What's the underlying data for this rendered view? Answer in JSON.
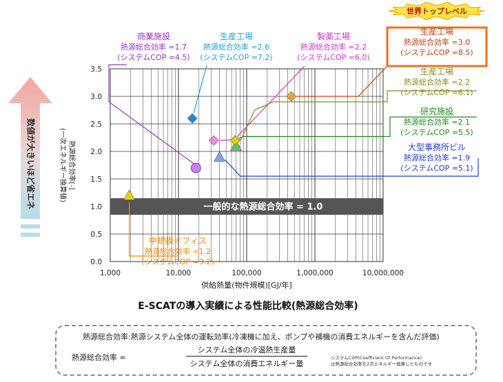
{
  "chart_data": {
    "type": "scatter",
    "title": "E-SCATの導入実績による性能比較(熱源総合効率)",
    "xlabel": "供給熱量(物件規模)[GJ/年]",
    "ylabel": "熱源総合効率[-]",
    "ylabel2": "(一次エネルギー換算値)",
    "xscale": "log",
    "xlim": [
      1000,
      10000000
    ],
    "ylim": [
      0,
      3.5
    ],
    "x_ticks": [
      "1,000",
      "10,000",
      "100,000",
      "1,000,000",
      "10,000,000"
    ],
    "y_ticks": [
      "0.0",
      "0.5",
      "1.0",
      "1.5",
      "2.0",
      "2.5",
      "3.0",
      "3.5"
    ],
    "grid": true,
    "reference_band": {
      "value": 1.0,
      "label": "一般的な熱源総合効率 = 1.0"
    },
    "points": [
      {
        "name": "中規模オフィス",
        "x": 1900,
        "y": 1.2,
        "marker": "triangle",
        "color": "#f2cc00",
        "label_color": "#f08a00",
        "value_text": "熱源総合効率 =1.2",
        "cop_text": "(システムCOP =3.2)"
      },
      {
        "name": "商業施設",
        "x": 18000,
        "y": 1.7,
        "marker": "circle",
        "color": "#c77ef0",
        "label_color": "#9b30c7",
        "value_text": "熱源総合効率 =1.7",
        "cop_text": "(システムCOP =4.5)"
      },
      {
        "name": "生産工場",
        "x": 16000,
        "y": 2.6,
        "marker": "diamond",
        "color": "#1e88e5",
        "label_color": "#1ea0d8",
        "value_text": "熱源総合効率 =2.6",
        "cop_text": "(システムCOP =7.2)"
      },
      {
        "name": "製薬工場",
        "x": 33000,
        "y": 2.2,
        "marker": "diamond",
        "color": "#f28de0",
        "label_color": "#d631c8",
        "value_text": "熱源総合効率 =2.2",
        "cop_text": "(システムCOP =6.0)"
      },
      {
        "name": "大型事務所ビル",
        "x": 40000,
        "y": 1.9,
        "marker": "triangle",
        "color": "#7da4e8",
        "label_color": "#1f3fd0",
        "value_text": "熱源総合効率 =1.9",
        "cop_text": "(システムCOP =5.1)"
      },
      {
        "name": "研究施設",
        "x": 70000,
        "y": 2.1,
        "marker": "triangle",
        "color": "#62c462",
        "label_color": "#1a8a1a",
        "value_text": "熱源総合効率 =2.1",
        "cop_text": "(システムCOP =5.5)"
      },
      {
        "name": "生産工場",
        "x": 68000,
        "y": 2.2,
        "marker": "diamond",
        "color": "#e0d000",
        "label_color": "#8a8a1e",
        "value_text": "熱源総合効率 =2.2",
        "cop_text": "(システムCOP =6.1)"
      },
      {
        "name": "生産工場",
        "x": 450000,
        "y": 3.0,
        "marker": "diamond",
        "color": "#f0a030",
        "label_color": "#c04010",
        "value_text": "熱源総合効率 =3.0",
        "cop_text": "(システムCOP =8.5)",
        "badge": "世界トップレベル"
      }
    ],
    "side_arrow_text": "数値が大きいほど省エネ"
  },
  "definition": {
    "line": "熱源総合効率:熱源システム全体の運転効率(冷凍機に加え、ポンプや補機の消費エネルギーを含んだ評価)",
    "label": "熱源総合効率 =",
    "numerator": "システム全体の冷温熱生産量",
    "denominator": "システム全体の消費エネルギー量",
    "note1": "システムCOP(Coefficient Of Performance)",
    "note2": "は熱源総合効率を2次エネルギー換算したものです"
  },
  "colors": {
    "highlight": "#f07020",
    "grid": "#333333",
    "band": "#555555"
  }
}
